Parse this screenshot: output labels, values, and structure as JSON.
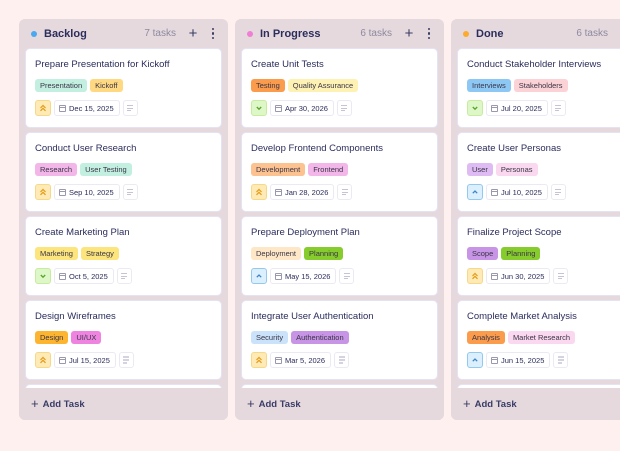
{
  "colors": {
    "background": "#fdf0ef",
    "column_bg": "#e5d9de",
    "card_bg": "#ffffff",
    "text": "#2b2d5c"
  },
  "columns": [
    {
      "title": "Backlog",
      "dot_color": "#4aa8f0",
      "count": "7 tasks",
      "add_icon": "plus-icon",
      "menu_icon": "kebab-menu-icon",
      "add_task_label": "Add Task",
      "cards": [
        {
          "title": "Prepare Presentation for Kickoff",
          "tags": [
            {
              "label": "Presentation",
              "color": "#c3efe1"
            },
            {
              "label": "Kickoff",
              "color": "#ffd982"
            }
          ],
          "priority": "high",
          "priority_icon": "chevrons-up-icon",
          "date": "Dec 15, 2025",
          "has_description": false
        },
        {
          "title": "Conduct User Research",
          "tags": [
            {
              "label": "Research",
              "color": "#f3b6e9"
            },
            {
              "label": "User Testing",
              "color": "#c3efe1"
            }
          ],
          "priority": "high",
          "priority_icon": "chevrons-up-icon",
          "date": "Sep 10, 2025",
          "has_description": false
        },
        {
          "title": "Create Marketing Plan",
          "tags": [
            {
              "label": "Marketing",
              "color": "#fce57d"
            },
            {
              "label": "Strategy",
              "color": "#fce57d"
            }
          ],
          "priority": "low",
          "priority_icon": "chevron-down-icon",
          "date": "Oct 5, 2025",
          "has_description": false
        },
        {
          "title": "Design Wireframes",
          "tags": [
            {
              "label": "Design",
              "color": "#fdb52f"
            },
            {
              "label": "UI/UX",
              "color": "#ee84e0"
            }
          ],
          "priority": "high",
          "priority_icon": "chevrons-up-icon",
          "date": "Jul 15, 2025",
          "has_description": true
        }
      ]
    },
    {
      "title": "In Progress",
      "dot_color": "#ee7ed6",
      "count": "6 tasks",
      "add_icon": "plus-icon",
      "menu_icon": "kebab-menu-icon",
      "add_task_label": "Add Task",
      "cards": [
        {
          "title": "Create Unit Tests",
          "tags": [
            {
              "label": "Testing",
              "color": "#fb9b4c"
            },
            {
              "label": "Quality Assurance",
              "color": "#fdf1b3"
            }
          ],
          "priority": "low",
          "priority_icon": "chevron-down-icon",
          "date": "Apr 30, 2026",
          "has_description": false
        },
        {
          "title": "Develop Frontend Components",
          "tags": [
            {
              "label": "Development",
              "color": "#fcc28f"
            },
            {
              "label": "Frontend",
              "color": "#f3b6e9"
            }
          ],
          "priority": "high",
          "priority_icon": "chevrons-up-icon",
          "date": "Jan 28, 2026",
          "has_description": false
        },
        {
          "title": "Prepare Deployment Plan",
          "tags": [
            {
              "label": "Deployment",
              "color": "#fde7c7"
            },
            {
              "label": "Planning",
              "color": "#86cc2d"
            }
          ],
          "priority": "medium",
          "priority_icon": "chevron-up-icon",
          "date": "May 15, 2026",
          "has_description": false
        },
        {
          "title": "Integrate User Authentication",
          "tags": [
            {
              "label": "Security",
              "color": "#cae3fb"
            },
            {
              "label": "Authentication",
              "color": "#c894e6"
            }
          ],
          "priority": "high",
          "priority_icon": "chevrons-up-icon",
          "date": "Mar 5, 2026",
          "has_description": true
        }
      ]
    },
    {
      "title": "Done",
      "dot_color": "#fbab2e",
      "count": "6 tasks",
      "add_icon": "plus-icon",
      "menu_icon": "kebab-menu-icon",
      "add_task_label": "Add Task",
      "cards": [
        {
          "title": "Conduct Stakeholder Interviews",
          "tags": [
            {
              "label": "Interviews",
              "color": "#8dc8f5"
            },
            {
              "label": "Stakeholders",
              "color": "#fbd2d6"
            }
          ],
          "priority": "low",
          "priority_icon": "chevron-down-icon",
          "date": "Jul 20, 2025",
          "has_description": false
        },
        {
          "title": "Create User Personas",
          "tags": [
            {
              "label": "User",
              "color": "#dfbbf3"
            },
            {
              "label": "Personas",
              "color": "#fad8ef"
            }
          ],
          "priority": "medium",
          "priority_icon": "chevron-up-icon",
          "date": "Jul 10, 2025",
          "has_description": false
        },
        {
          "title": "Finalize Project Scope",
          "tags": [
            {
              "label": "Scope",
              "color": "#c894e6"
            },
            {
              "label": "Planning",
              "color": "#86cc2d"
            }
          ],
          "priority": "high",
          "priority_icon": "chevrons-up-icon",
          "date": "Jun 30, 2025",
          "has_description": false
        },
        {
          "title": "Complete Market Analysis",
          "tags": [
            {
              "label": "Analysis",
              "color": "#fb9b4c"
            },
            {
              "label": "Market Research",
              "color": "#fad8ef"
            }
          ],
          "priority": "medium",
          "priority_icon": "chevron-up-icon",
          "date": "Jun 15, 2025",
          "has_description": true
        }
      ]
    }
  ],
  "icons": {
    "chevrons-up-icon": "⌃⌃",
    "chevron-up-icon": "⌃",
    "chevron-down-icon": "⌄"
  }
}
